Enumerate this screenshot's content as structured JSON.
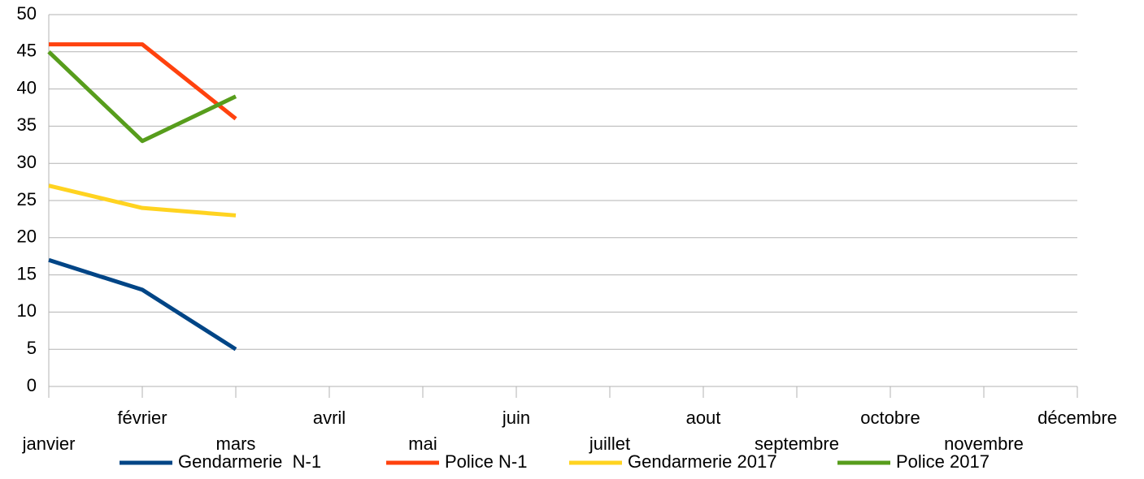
{
  "chart_data": {
    "type": "line",
    "categories": [
      "janvier",
      "février",
      "mars",
      "avril",
      "mai",
      "juin",
      "juillet",
      "aout",
      "septembre",
      "octobre",
      "novembre",
      "décembre"
    ],
    "series": [
      {
        "name": "Gendarmerie  N-1",
        "color": "#004586",
        "values": [
          17,
          13,
          5,
          null,
          null,
          null,
          null,
          null,
          null,
          null,
          null,
          null
        ]
      },
      {
        "name": "Police N-1",
        "color": "#ff420e",
        "values": [
          46,
          46,
          36,
          null,
          null,
          null,
          null,
          null,
          null,
          null,
          null,
          null
        ]
      },
      {
        "name": "Gendarmerie 2017",
        "color": "#ffd320",
        "values": [
          27,
          24,
          23,
          null,
          null,
          null,
          null,
          null,
          null,
          null,
          null,
          null
        ]
      },
      {
        "name": "Police 2017",
        "color": "#579d1c",
        "values": [
          45,
          33,
          39,
          null,
          null,
          null,
          null,
          null,
          null,
          null,
          null,
          null
        ]
      }
    ],
    "ylim": [
      0,
      50
    ],
    "yticks": [
      0,
      5,
      10,
      15,
      20,
      25,
      30,
      35,
      40,
      45,
      50
    ],
    "grid": true,
    "legend": "bottom"
  }
}
